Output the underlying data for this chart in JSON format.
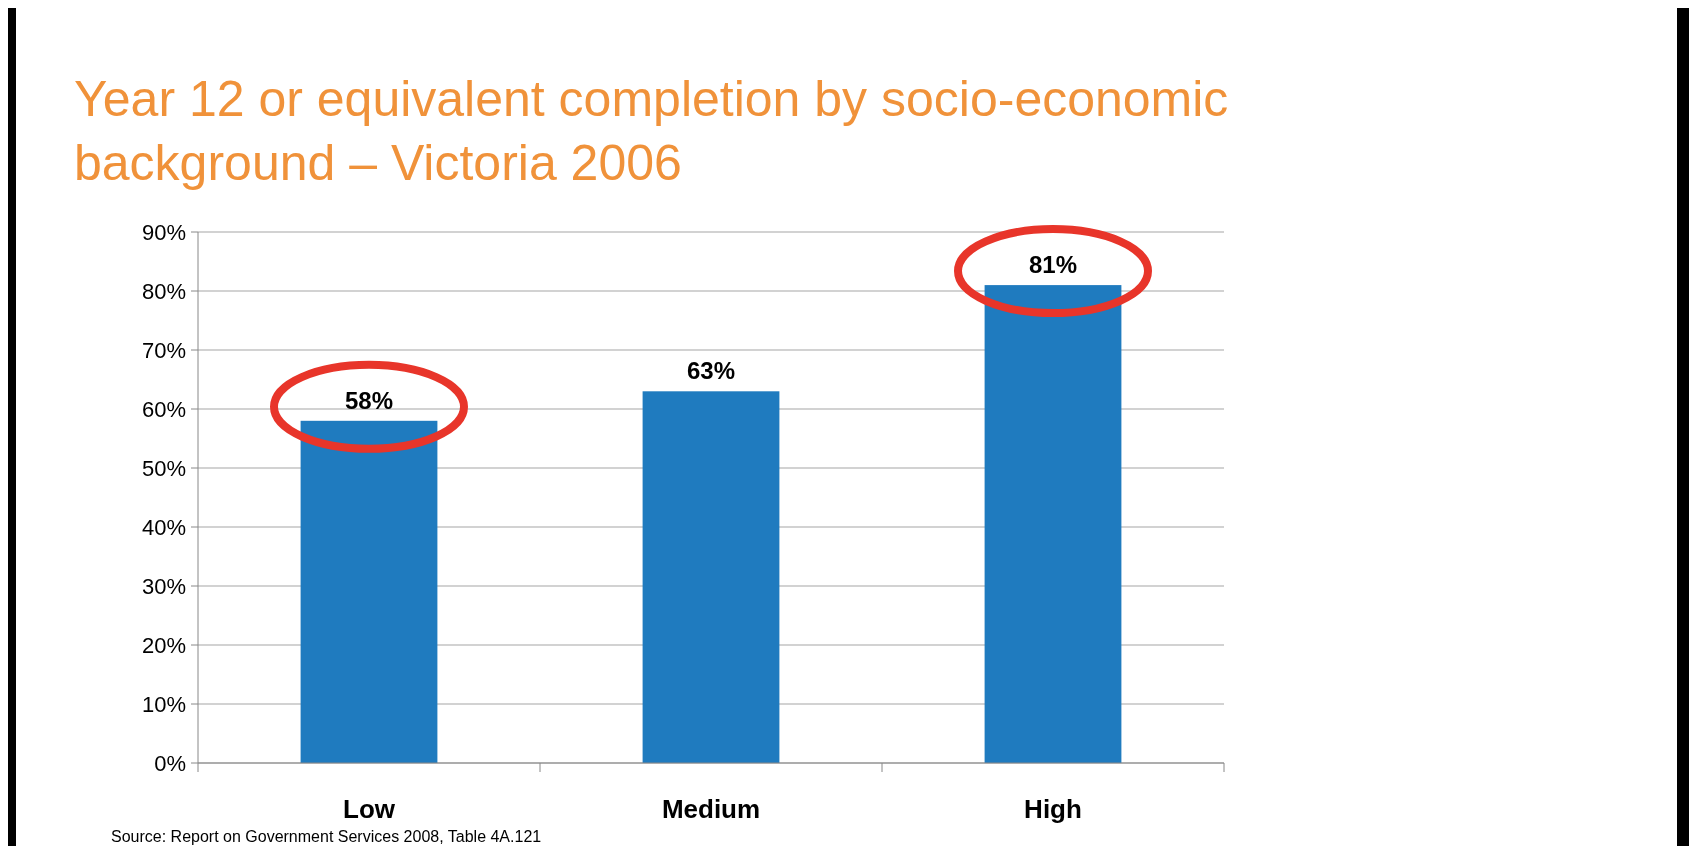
{
  "chart_data": {
    "type": "bar",
    "title": "Year 12 or equivalent completion by socio-economic background – Victoria 2006",
    "categories": [
      "Low",
      "Medium",
      "High"
    ],
    "values": [
      58,
      63,
      81
    ],
    "color": "#1f7bbf",
    "ylim": [
      0,
      90
    ],
    "yticks": [
      {
        "value": 0,
        "label": "0%"
      },
      {
        "value": 10,
        "label": "10%"
      },
      {
        "value": 20,
        "label": "20%"
      },
      {
        "value": 30,
        "label": "30%"
      },
      {
        "value": 40,
        "label": "40%"
      },
      {
        "value": 50,
        "label": "50%"
      },
      {
        "value": 60,
        "label": "60%"
      },
      {
        "value": 70,
        "label": "70%"
      },
      {
        "value": 80,
        "label": "80%"
      },
      {
        "value": 90,
        "label": "90%"
      }
    ],
    "grid": "y",
    "value_labels": [
      "58%",
      "63%",
      "81%"
    ],
    "annotations": [
      "Source: Report on Government Services 2008, Table 4A.121"
    ]
  }
}
